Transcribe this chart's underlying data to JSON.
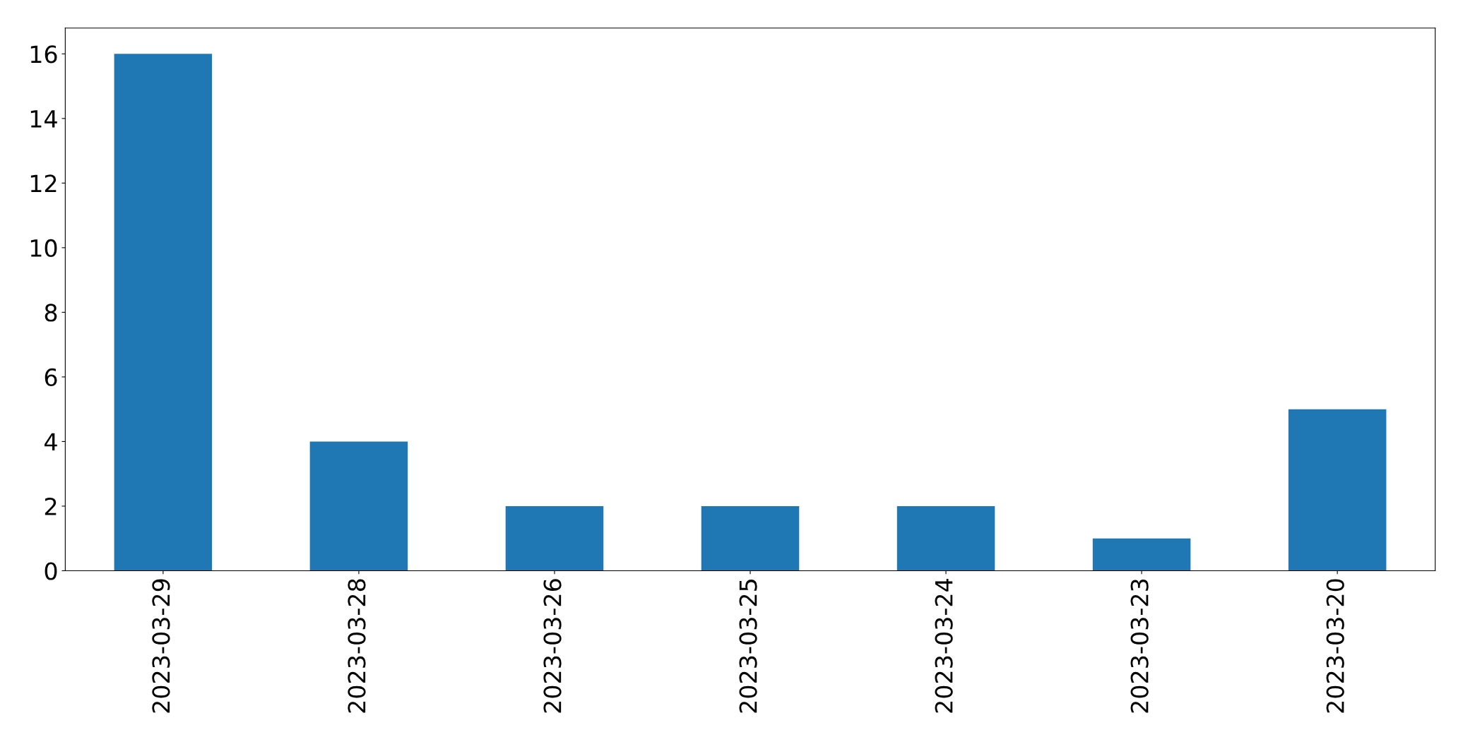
{
  "chart_data": {
    "type": "bar",
    "categories": [
      "2023-03-29",
      "2023-03-28",
      "2023-03-26",
      "2023-03-25",
      "2023-03-24",
      "2023-03-23",
      "2023-03-20"
    ],
    "values": [
      16,
      4,
      2,
      2,
      2,
      1,
      5
    ],
    "color": "#1f77b4",
    "ylim": [
      0,
      16.8
    ],
    "yticks": [
      0,
      2,
      4,
      6,
      8,
      10,
      12,
      14,
      16
    ],
    "grid": false
  }
}
